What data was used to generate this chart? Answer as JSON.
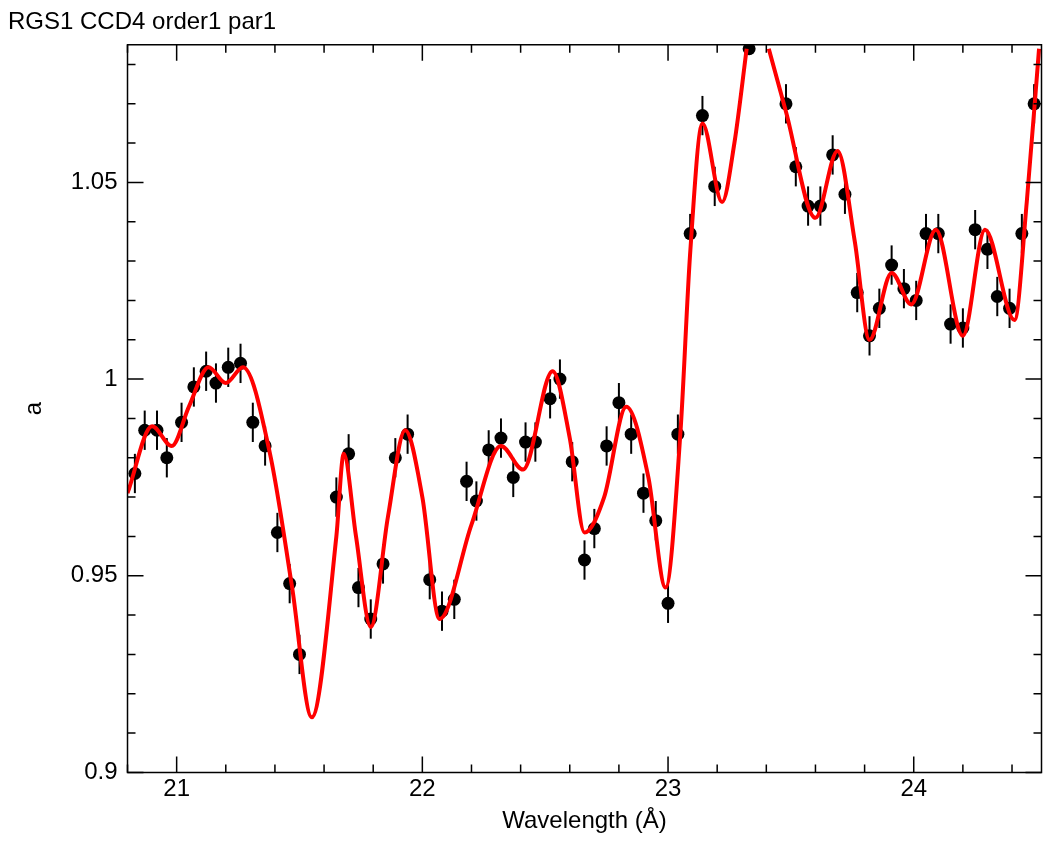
{
  "chart_data": {
    "type": "scatter",
    "title": "RGS1 CCD4 order1 par1",
    "xlabel": "Wavelength (Å)",
    "ylabel": "a",
    "xlim": [
      20.8,
      24.52
    ],
    "ylim": [
      0.9,
      1.085
    ],
    "xticks": [
      {
        "value": 20.8,
        "label": null
      },
      21,
      {
        "value": 21.2,
        "label": null
      },
      {
        "value": 21.4,
        "label": null
      },
      {
        "value": 21.6,
        "label": null
      },
      {
        "value": 21.8,
        "label": null
      },
      22,
      {
        "value": 22.2,
        "label": null
      },
      {
        "value": 22.4,
        "label": null
      },
      {
        "value": 22.6,
        "label": null
      },
      {
        "value": 22.8,
        "label": null
      },
      23,
      {
        "value": 23.2,
        "label": null
      },
      {
        "value": 23.4,
        "label": null
      },
      {
        "value": 23.6,
        "label": null
      },
      {
        "value": 23.8,
        "label": null
      },
      24,
      {
        "value": 24.2,
        "label": null
      },
      {
        "value": 24.4,
        "label": null
      }
    ],
    "yticks": [
      0.9,
      {
        "value": 0.91,
        "label": null
      },
      {
        "value": 0.92,
        "label": null
      },
      {
        "value": 0.93,
        "label": null
      },
      {
        "value": 0.94,
        "label": null
      },
      0.95,
      {
        "value": 0.96,
        "label": null
      },
      {
        "value": 0.97,
        "label": null
      },
      {
        "value": 0.98,
        "label": null
      },
      {
        "value": 0.99,
        "label": null
      },
      1,
      {
        "value": 1.01,
        "label": null
      },
      {
        "value": 1.02,
        "label": null
      },
      {
        "value": 1.03,
        "label": null
      },
      {
        "value": 1.04,
        "label": null
      },
      1.05,
      {
        "value": 1.06,
        "label": null
      },
      {
        "value": 1.07,
        "label": null
      },
      {
        "value": 1.08,
        "label": null
      }
    ],
    "grid": false,
    "legend": false,
    "series": [
      {
        "type": "scatter",
        "color": "#000000",
        "marker": "circle",
        "x": [
          20.83,
          20.87,
          20.92,
          20.96,
          21.02,
          21.07,
          21.12,
          21.16,
          21.21,
          21.26,
          21.31,
          21.36,
          21.41,
          21.46,
          21.5,
          21.65,
          21.7,
          21.74,
          21.79,
          21.84,
          21.89,
          21.94,
          22.03,
          22.08,
          22.13,
          22.18,
          22.22,
          22.27,
          22.32,
          22.37,
          22.42,
          22.46,
          22.52,
          22.56,
          22.61,
          22.66,
          22.7,
          22.75,
          22.8,
          22.85,
          22.9,
          22.95,
          23.0,
          23.04,
          23.09,
          23.14,
          23.19,
          23.33,
          23.48,
          23.52,
          23.57,
          23.62,
          23.67,
          23.72,
          23.77,
          23.82,
          23.86,
          23.91,
          23.96,
          24.01,
          24.05,
          24.1,
          24.15,
          24.2,
          24.25,
          24.3,
          24.34,
          24.39,
          24.44,
          24.49
        ],
        "values": [
          0.976,
          0.987,
          0.987,
          0.98,
          0.989,
          0.998,
          1.002,
          0.999,
          1.003,
          1.004,
          0.989,
          0.983,
          0.961,
          0.948,
          0.93,
          0.97,
          0.981,
          0.947,
          0.939,
          0.953,
          0.98,
          0.986,
          0.949,
          0.941,
          0.944,
          0.974,
          0.969,
          0.982,
          0.985,
          0.975,
          0.984,
          0.984,
          0.995,
          1.0,
          0.979,
          0.954,
          0.962,
          0.983,
          0.994,
          0.986,
          0.971,
          0.964,
          0.943,
          0.986,
          1.037,
          1.067,
          1.049,
          1.084,
          1.07,
          1.054,
          1.044,
          1.044,
          1.057,
          1.047,
          1.022,
          1.011,
          1.018,
          1.029,
          1.023,
          1.02,
          1.037,
          1.037,
          1.014,
          1.013,
          1.038,
          1.033,
          1.021,
          1.018,
          1.037,
          1.07
        ],
        "errors": [
          0.005,
          0.005,
          0.005,
          0.005,
          0.005,
          0.005,
          0.005,
          0.005,
          0.005,
          0.005,
          0.005,
          0.005,
          0.005,
          0.005,
          0.005,
          0.005,
          0.005,
          0.005,
          0.005,
          0.005,
          0.005,
          0.005,
          0.005,
          0.005,
          0.005,
          0.005,
          0.005,
          0.005,
          0.005,
          0.005,
          0.005,
          0.005,
          0.005,
          0.005,
          0.005,
          0.005,
          0.005,
          0.005,
          0.005,
          0.005,
          0.005,
          0.005,
          0.005,
          0.005,
          0.005,
          0.005,
          0.005,
          null,
          0.005,
          0.005,
          0.005,
          0.005,
          0.005,
          0.005,
          0.005,
          0.005,
          0.005,
          0.005,
          0.005,
          0.005,
          0.005,
          0.005,
          0.005,
          0.005,
          0.005,
          0.005,
          0.005,
          0.005,
          0.005,
          0.005
        ]
      },
      {
        "type": "line",
        "color": "#ff0000",
        "marker": "none",
        "line_style": "solid",
        "x": [
          20.8,
          20.9,
          20.98,
          21.05,
          21.13,
          21.2,
          21.27,
          21.38,
          21.47,
          21.55,
          21.65,
          21.68,
          21.73,
          21.79,
          21.86,
          21.93,
          22.0,
          22.07,
          22.2,
          22.32,
          22.41,
          22.53,
          22.6,
          22.66,
          22.74,
          22.83,
          22.92,
          22.99,
          23.05,
          23.09,
          23.14,
          23.22,
          23.27,
          23.32,
          23.37,
          23.41,
          23.48,
          23.6,
          23.69,
          23.76,
          23.82,
          23.91,
          23.99,
          24.09,
          24.2,
          24.29,
          24.41,
          24.46,
          24.51
        ],
        "values": [
          0.971,
          0.988,
          0.983,
          0.993,
          1.003,
          0.999,
          1.003,
          0.981,
          0.947,
          0.914,
          0.96,
          0.981,
          0.96,
          0.937,
          0.965,
          0.987,
          0.97,
          0.939,
          0.963,
          0.983,
          0.977,
          1.002,
          0.985,
          0.961,
          0.97,
          0.993,
          0.975,
          0.947,
          0.986,
          1.032,
          1.065,
          1.045,
          1.06,
          1.084,
          null,
          1.084,
          1.068,
          1.041,
          1.058,
          1.035,
          1.01,
          1.027,
          1.019,
          1.038,
          1.011,
          1.038,
          1.015,
          1.045,
          1.084
        ]
      }
    ]
  }
}
